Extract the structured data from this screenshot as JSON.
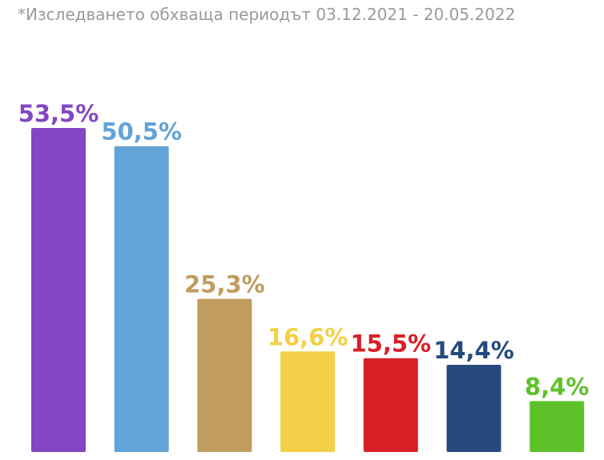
{
  "note": "*Изследването обхваща периодът 03.12.2021 - 20.05.2022",
  "chart_data": {
    "type": "bar",
    "categories": [
      "",
      "",
      "",
      "",
      "",
      "",
      ""
    ],
    "values": [
      53.5,
      50.5,
      25.3,
      16.6,
      15.5,
      14.4,
      8.4
    ],
    "labels": [
      "53,5%",
      "50,5%",
      "25,3%",
      "16,6%",
      "15,5%",
      "14,4%",
      "8,4%"
    ],
    "colors": [
      "#8446c2",
      "#62a3d8",
      "#c09c5f",
      "#f3d047",
      "#d91f26",
      "#264a7e",
      "#5dc22a"
    ],
    "ylim": [
      0,
      53.5
    ],
    "grid": false,
    "legend": "none"
  }
}
